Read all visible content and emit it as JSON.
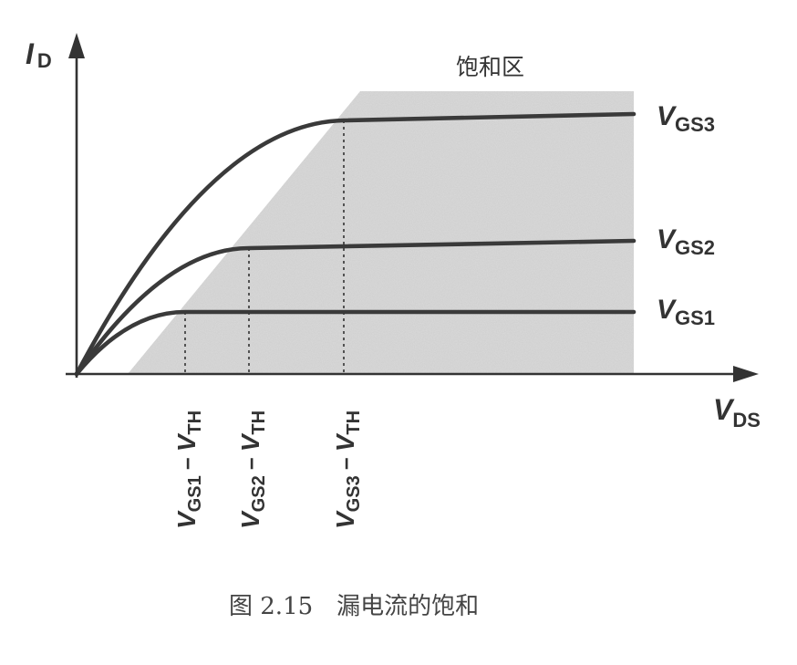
{
  "axes": {
    "y_symbol": "I",
    "y_subscript": "D",
    "x_symbol": "V",
    "x_subscript": "DS"
  },
  "region_label": "饱和区",
  "curves": [
    {
      "symbol": "V",
      "subscript": "GS3"
    },
    {
      "symbol": "V",
      "subscript": "GS2"
    },
    {
      "symbol": "V",
      "subscript": "GS1"
    }
  ],
  "overdrive_labels": [
    {
      "v": "V",
      "gs": "GS1",
      "minus": "−",
      "vt": "V",
      "th": "TH"
    },
    {
      "v": "V",
      "gs": "GS2",
      "minus": "−",
      "vt": "V",
      "th": "TH"
    },
    {
      "v": "V",
      "gs": "GS3",
      "minus": "−",
      "vt": "V",
      "th": "TH"
    }
  ],
  "caption": {
    "number": "图 2.15",
    "text": "漏电流的饱和"
  },
  "colors": {
    "ink": "#333333",
    "shading": "#cfcfcf"
  }
}
